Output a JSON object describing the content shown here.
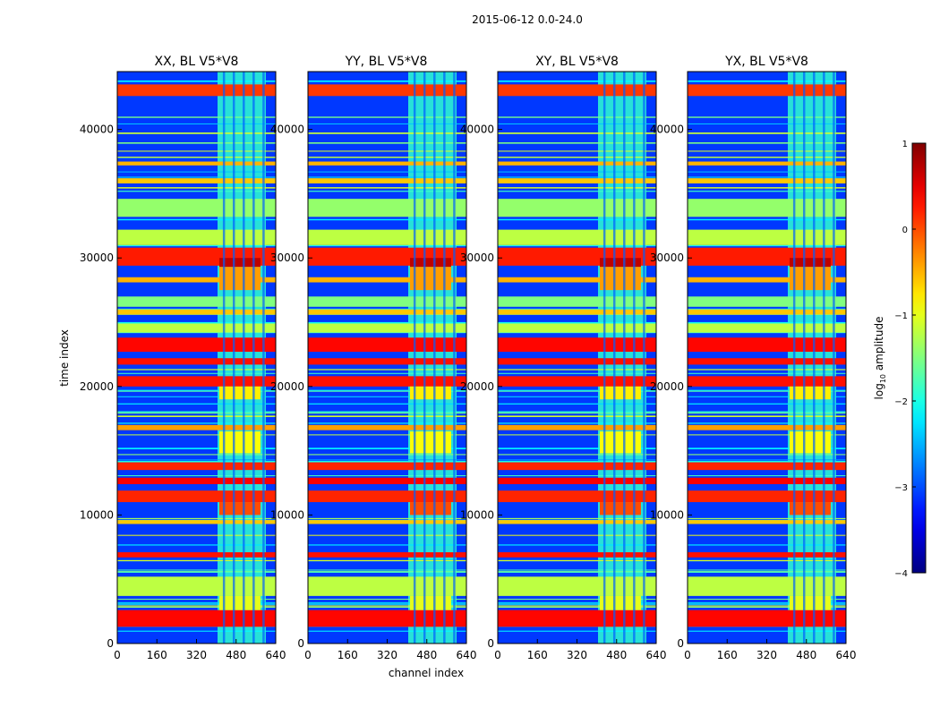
{
  "figure": {
    "suptitle": "2015-06-12 0.0-24.0"
  },
  "chart_data": {
    "type": "heatmap",
    "xlabel": "channel index",
    "ylabel": "time index",
    "xlim": [
      0,
      640
    ],
    "ylim": [
      0,
      44500
    ],
    "xticks": [
      0,
      160,
      320,
      480,
      640
    ],
    "yticks": [
      0,
      10000,
      20000,
      30000,
      40000
    ],
    "panels": [
      {
        "title": "XX, BL V5*V8"
      },
      {
        "title": "YY, BL V5*V8"
      },
      {
        "title": "XY, BL V5*V8"
      },
      {
        "title": "YX, BL V5*V8"
      }
    ],
    "colorbar": {
      "label": "log",
      "label_sub": "10",
      "label_rest": " amplitude",
      "range": [
        -4,
        1
      ],
      "ticks": [
        1,
        0,
        -1,
        -2,
        -3,
        -4
      ],
      "tick_labels": [
        "1",
        "0",
        "−1",
        "−2",
        "−3",
        "−4"
      ],
      "colormap": "jet"
    },
    "features": {
      "rfi_channel_band": [
        405,
        600
      ],
      "grid_columns": [
        430,
        470,
        510,
        550,
        590
      ],
      "strong_bands": [
        {
          "t": [
            1300,
            2600
          ],
          "lvl": 0.35
        },
        {
          "t": [
            3700,
            5200
          ],
          "lvl": -1.2
        },
        {
          "t": [
            6700,
            7100
          ],
          "lvl": 0.3
        },
        {
          "t": [
            9300,
            9600
          ],
          "lvl": -0.6
        },
        {
          "t": [
            11000,
            11900
          ],
          "lvl": 0.2
        },
        {
          "t": [
            12400,
            12900
          ],
          "lvl": 0.4
        },
        {
          "t": [
            13500,
            14100
          ],
          "lvl": 0.2
        },
        {
          "t": [
            16600,
            17000
          ],
          "lvl": -0.4
        },
        {
          "t": [
            20000,
            20800
          ],
          "lvl": 0.3
        },
        {
          "t": [
            21700,
            22200
          ],
          "lvl": 0.3
        },
        {
          "t": [
            22700,
            23800
          ],
          "lvl": 0.35
        },
        {
          "t": [
            24200,
            24900
          ],
          "lvl": -1.2
        },
        {
          "t": [
            25600,
            26000
          ],
          "lvl": -0.6
        },
        {
          "t": [
            26200,
            27000
          ],
          "lvl": -1.5
        },
        {
          "t": [
            28100,
            28500
          ],
          "lvl": -0.5
        },
        {
          "t": [
            29400,
            30800
          ],
          "lvl": 0.25
        },
        {
          "t": [
            31000,
            32200
          ],
          "lvl": -1.2
        },
        {
          "t": [
            33200,
            34600
          ],
          "lvl": -1.4
        },
        {
          "t": [
            35800,
            36200
          ],
          "lvl": -0.6
        },
        {
          "t": [
            37200,
            37500
          ],
          "lvl": -0.5
        },
        {
          "t": [
            42600,
            43500
          ],
          "lvl": 0.1
        }
      ],
      "rfi_blocks": [
        {
          "t": [
            29300,
            30000
          ],
          "lvl": 0.7
        },
        {
          "t": [
            27500,
            29300
          ],
          "lvl": -0.4
        },
        {
          "t": [
            19000,
            20000
          ],
          "lvl": -0.8
        },
        {
          "t": [
            14800,
            16500
          ],
          "lvl": -0.9
        },
        {
          "t": [
            10000,
            11000
          ],
          "lvl": 0.0
        },
        {
          "t": [
            2600,
            3700
          ],
          "lvl": -1.0
        }
      ]
    }
  }
}
